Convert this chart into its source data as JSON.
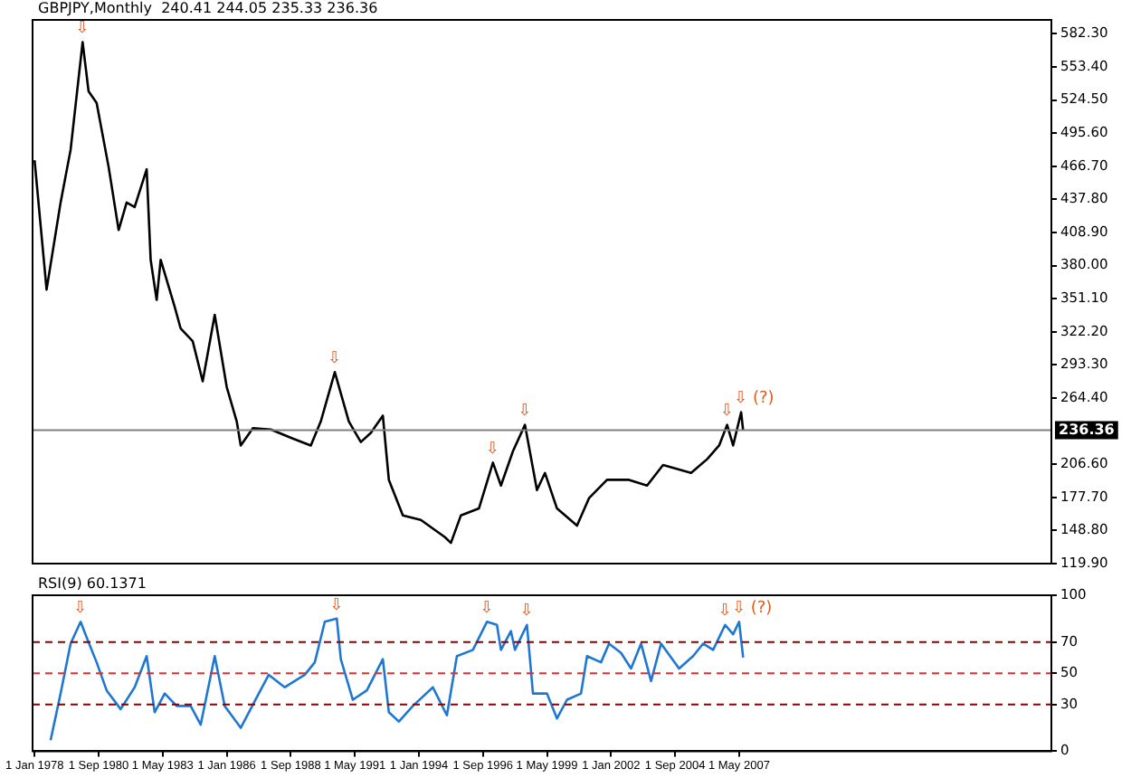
{
  "chart_data": [
    {
      "type": "line",
      "title": "GBPJPY,Monthly  240.41 244.05 235.33 236.36",
      "series": [
        {
          "color": "#000000",
          "x": [
            "1978-01",
            "1978-07",
            "1979-02",
            "1979-07",
            "1980-01",
            "1980-04",
            "1980-08",
            "1981-02",
            "1981-07",
            "1981-11",
            "1982-03",
            "1982-09",
            "1982-11",
            "1983-02",
            "1983-04",
            "1983-11",
            "1984-02",
            "1984-08",
            "1985-01",
            "1985-07",
            "1986-01",
            "1986-06",
            "1986-08",
            "1987-02",
            "1987-11",
            "1988-10",
            "1989-07",
            "1989-12",
            "1990-07",
            "1991-02",
            "1991-08",
            "1992-01",
            "1992-07",
            "1992-10",
            "1993-05",
            "1994-02",
            "1995-02",
            "1995-05",
            "1995-10",
            "1996-07",
            "1997-02",
            "1997-06",
            "1997-12",
            "1998-06",
            "1998-12",
            "1999-04",
            "1999-10",
            "2000-08",
            "2001-02",
            "2001-11",
            "2002-10",
            "2003-07",
            "2004-03",
            "2005-05",
            "2006-01",
            "2006-07",
            "2006-11",
            "2007-02",
            "2007-06",
            "2007-07"
          ],
          "values": [
            472,
            359,
            435,
            481,
            575,
            532,
            522,
            466,
            411,
            435,
            431,
            464,
            385,
            350,
            385,
            344,
            325,
            314,
            279,
            337,
            274,
            244,
            223,
            238,
            237,
            229,
            223,
            244,
            287,
            244,
            226,
            234,
            249,
            193,
            162,
            158,
            143,
            138,
            162,
            168,
            208,
            188,
            218,
            241,
            184,
            199,
            168,
            153,
            177,
            193,
            193,
            188,
            206,
            199,
            211,
            223,
            241,
            223,
            252,
            236
          ]
        }
      ],
      "xlim": [
        "1977-12",
        "2020-05"
      ],
      "xticks": [
        {
          "value": "1978-01",
          "label": null
        },
        {
          "value": "1980-09",
          "label": null
        },
        {
          "value": "1983-05",
          "label": null
        },
        {
          "value": "1986-01",
          "label": null
        },
        {
          "value": "1988-09",
          "label": null
        },
        {
          "value": "1991-05",
          "label": null
        },
        {
          "value": "1994-01",
          "label": null
        },
        {
          "value": "1996-09",
          "label": null
        },
        {
          "value": "1999-05",
          "label": null
        },
        {
          "value": "2002-01",
          "label": null
        },
        {
          "value": "2004-09",
          "label": null
        },
        {
          "value": "2007-05",
          "label": null
        }
      ],
      "ylim": [
        119.9,
        594.4
      ],
      "yticks": [
        {
          "value": 119.9,
          "label": "119.90"
        },
        {
          "value": 148.8,
          "label": "148.80"
        },
        {
          "value": 177.7,
          "label": "177.70"
        },
        {
          "value": 206.6,
          "label": "206.60"
        },
        {
          "value": 264.4,
          "label": "264.40"
        },
        {
          "value": 293.3,
          "label": "293.30"
        },
        {
          "value": 322.2,
          "label": "322.20"
        },
        {
          "value": 351.1,
          "label": "351.10"
        },
        {
          "value": 380,
          "label": "380.00"
        },
        {
          "value": 408.9,
          "label": "408.90"
        },
        {
          "value": 437.8,
          "label": "437.80"
        },
        {
          "value": 466.7,
          "label": "466.70"
        },
        {
          "value": 495.6,
          "label": "495.60"
        },
        {
          "value": 524.5,
          "label": "524.50"
        },
        {
          "value": 553.4,
          "label": "553.40"
        },
        {
          "value": 582.3,
          "label": "582.30"
        }
      ],
      "tick_labels": "y",
      "ref_lines": [
        {
          "axis": "y",
          "value": 236.36,
          "label": "236.36",
          "color": "#808080",
          "line_style": "solid"
        }
      ],
      "annotations": [
        {
          "text": "⇩",
          "x": "1980-01",
          "y": 575
        },
        {
          "text": "⇩",
          "x": "1990-07",
          "y": 287
        },
        {
          "text": "⇩",
          "x": "1997-02",
          "y": 208
        },
        {
          "text": "⇩",
          "x": "1998-06",
          "y": 241
        },
        {
          "text": "⇩",
          "x": "2006-11",
          "y": 241
        },
        {
          "text": "⇩ (?)",
          "x": "2007-06",
          "y": 252
        }
      ],
      "marker": "none",
      "line_style": "solid",
      "legend": false,
      "grid": false
    },
    {
      "type": "line",
      "title": "RSI(9) 60.1371",
      "series": [
        {
          "color": "#1e78d2",
          "x": [
            "1978-09",
            "1979-02",
            "1979-07",
            "1979-12",
            "1980-03",
            "1980-08",
            "1981-01",
            "1981-08",
            "1982-03",
            "1982-09",
            "1983-01",
            "1983-06",
            "1983-12",
            "1984-07",
            "1984-12",
            "1985-07",
            "1985-12",
            "1986-08",
            "1987-05",
            "1987-10",
            "1988-06",
            "1989-04",
            "1989-09",
            "1990-02",
            "1990-08",
            "1990-10",
            "1991-04",
            "1991-11",
            "1992-07",
            "1992-10",
            "1993-03",
            "1993-10",
            "1994-08",
            "1995-03",
            "1995-08",
            "1996-04",
            "1996-11",
            "1997-04",
            "1997-06",
            "1997-11",
            "1998-01",
            "1998-07",
            "1998-10",
            "1999-05",
            "1999-10",
            "2000-03",
            "2000-10",
            "2001-01",
            "2001-08",
            "2001-12",
            "2002-06",
            "2002-11",
            "2003-04",
            "2003-09",
            "2004-02",
            "2004-11",
            "2005-06",
            "2005-11",
            "2006-04",
            "2006-10",
            "2007-02",
            "2007-05",
            "2007-07"
          ],
          "values": [
            7,
            37,
            69,
            83,
            73,
            57,
            39,
            27,
            41,
            61,
            25,
            37,
            29,
            29,
            17,
            61,
            29,
            15,
            37,
            49,
            41,
            49,
            57,
            83,
            85,
            59,
            33,
            39,
            59,
            25,
            19,
            29,
            41,
            23,
            61,
            65,
            83,
            81,
            65,
            77,
            65,
            81,
            37,
            37,
            21,
            33,
            37,
            61,
            57,
            69,
            63,
            53,
            69,
            45,
            69,
            53,
            61,
            69,
            65,
            81,
            75,
            83,
            60
          ]
        }
      ],
      "xlim": [
        "1977-12",
        "2020-05"
      ],
      "xticks": [
        {
          "value": "1978-01",
          "label": "1 Jan 1978"
        },
        {
          "value": "1980-09",
          "label": "1 Sep 1980"
        },
        {
          "value": "1983-05",
          "label": "1 May 1983"
        },
        {
          "value": "1986-01",
          "label": "1 Jan 1986"
        },
        {
          "value": "1988-09",
          "label": "1 Sep 1988"
        },
        {
          "value": "1991-05",
          "label": "1 May 1991"
        },
        {
          "value": "1994-01",
          "label": "1 Jan 1994"
        },
        {
          "value": "1996-09",
          "label": "1 Sep 1996"
        },
        {
          "value": "1999-05",
          "label": "1 May 1999"
        },
        {
          "value": "2002-01",
          "label": "1 Jan 2002"
        },
        {
          "value": "2004-09",
          "label": "1 Sep 2004"
        },
        {
          "value": "2007-05",
          "label": "1 May 2007"
        }
      ],
      "ylim": [
        0,
        100
      ],
      "yticks": [
        0,
        30,
        50,
        70,
        100
      ],
      "ref_lines": [
        {
          "axis": "y",
          "value": 30,
          "color": "#8b0000",
          "line_style": "dashed"
        },
        {
          "axis": "y",
          "value": 50,
          "color": "#e03030",
          "line_style": "dashed"
        },
        {
          "axis": "y",
          "value": 70,
          "color": "#8b0000",
          "line_style": "dashed"
        }
      ],
      "annotations": [
        {
          "text": "⇩",
          "x": "1979-12",
          "y": 83
        },
        {
          "text": "⇩",
          "x": "1990-08",
          "y": 85
        },
        {
          "text": "⇩",
          "x": "1996-11",
          "y": 83
        },
        {
          "text": "⇩",
          "x": "1998-07",
          "y": 81
        },
        {
          "text": "⇩",
          "x": "2006-10",
          "y": 81
        },
        {
          "text": "⇩ (?)",
          "x": "2007-05",
          "y": 83
        }
      ],
      "marker": "none",
      "line_style": "solid",
      "legend": false,
      "grid": false
    }
  ]
}
